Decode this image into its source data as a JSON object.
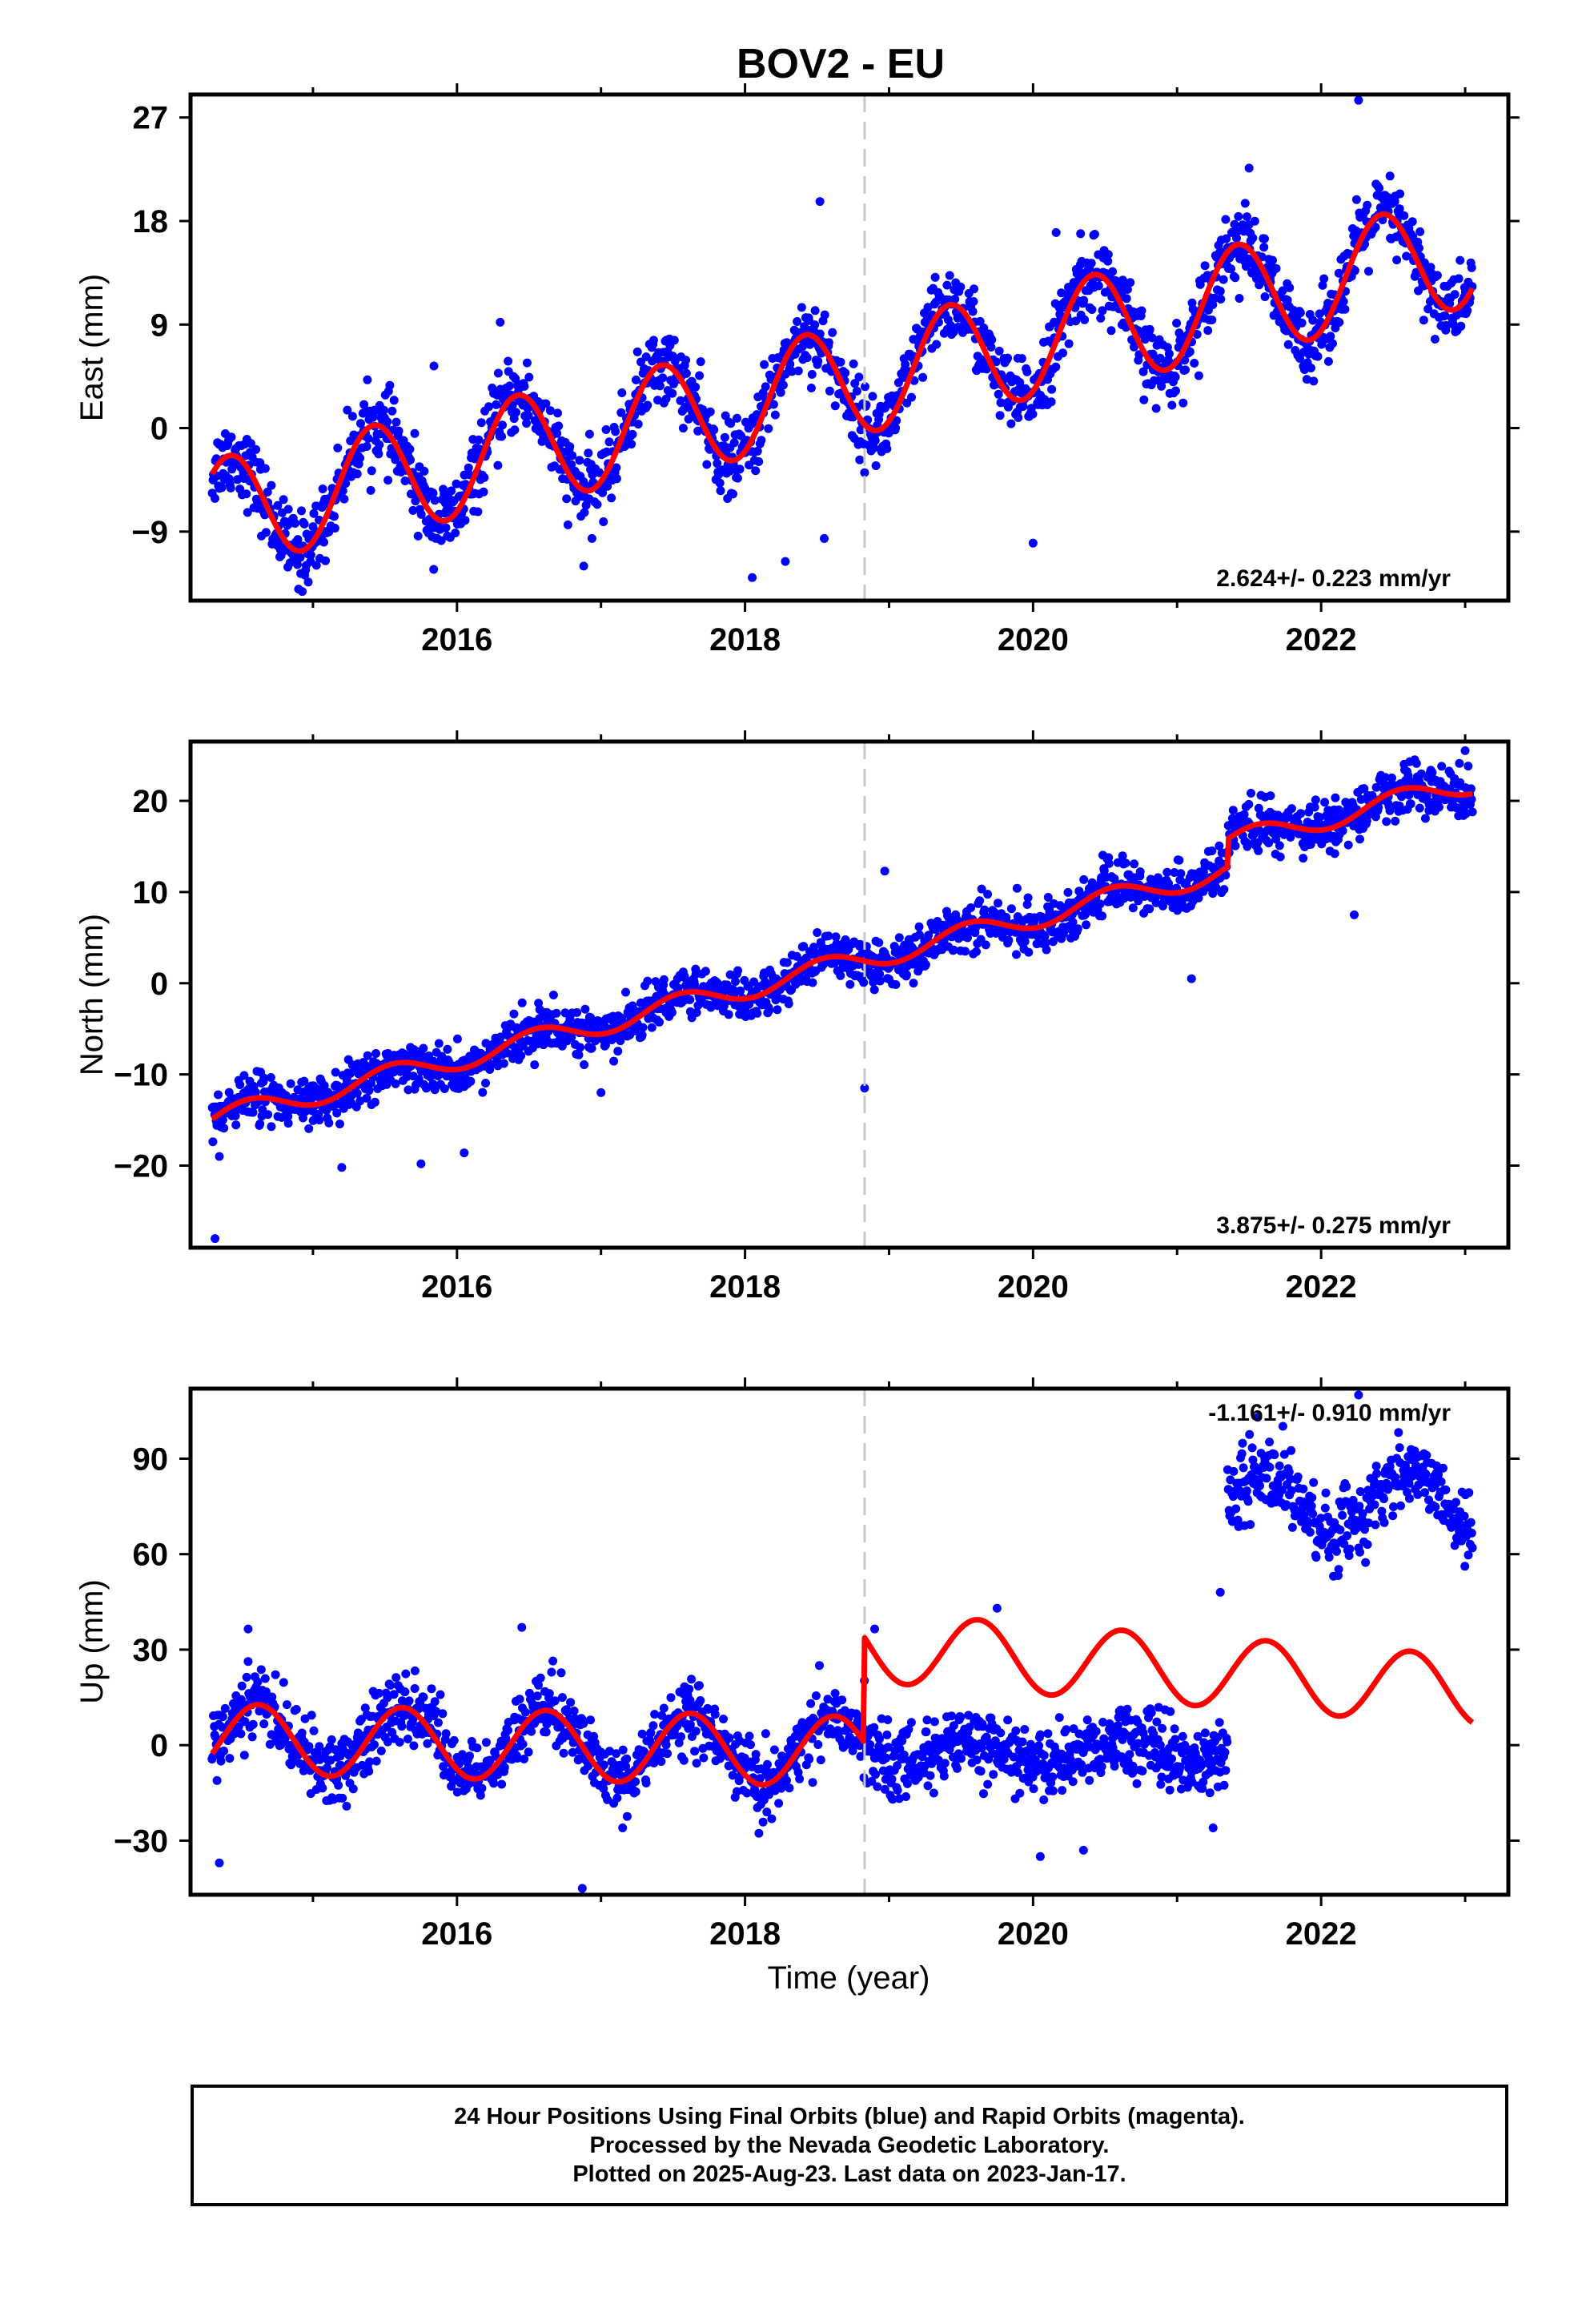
{
  "title": "BOV2 - EU",
  "colors": {
    "data": "#0000ff",
    "model": "#ff0000",
    "break_line": "#c8c8c8",
    "frame": "#000000"
  },
  "xlabel": "Time (year)",
  "footer": {
    "line1": "24 Hour Positions Using Final Orbits (blue) and Rapid Orbits (magenta).",
    "line2": "Processed by the Nevada Geodetic Laboratory.",
    "line3": "Plotted on 2025-Aug-23. Last data on 2023-Jan-17."
  },
  "chart_data": [
    {
      "type": "scatter",
      "component": "east",
      "ylabel": "East (mm)",
      "xlim": [
        2014.15,
        2023.3
      ],
      "ylim": [
        -15,
        29
      ],
      "xticks": [
        2016,
        2018,
        2020,
        2022
      ],
      "yticks": [
        -9,
        0,
        9,
        18,
        27
      ],
      "rate_text": "2.624+/- 0.223 mm/yr",
      "rate_position": "bottom-right",
      "break_epoch": 2018.83,
      "data_range": [
        2014.3,
        2023.05
      ],
      "trend": {
        "offset": -7.5,
        "rate": 2.62
      },
      "seasonal": {
        "amplitude": 4.8,
        "peak_phase": 0.42
      },
      "offsets": [],
      "scatter_sigma": 1.6,
      "points": [
        {
          "x": 2014.35,
          "y": -6.8
        },
        {
          "x": 2014.8,
          "y": -11.8
        },
        {
          "x": 2015.4,
          "y": -4.1
        },
        {
          "x": 2015.85,
          "y": -9.0
        },
        {
          "x": 2016.45,
          "y": -1.5
        },
        {
          "x": 2016.9,
          "y": -6.3
        },
        {
          "x": 2017.4,
          "y": 1.3
        },
        {
          "x": 2017.9,
          "y": -3.5
        },
        {
          "x": 2018.42,
          "y": 3.9
        },
        {
          "x": 2018.9,
          "y": -1.0
        },
        {
          "x": 2019.4,
          "y": 5.6
        },
        {
          "x": 2019.85,
          "y": 0.9
        },
        {
          "x": 2020.4,
          "y": 8.5
        },
        {
          "x": 2020.85,
          "y": 3.5
        },
        {
          "x": 2021.45,
          "y": 11.0
        },
        {
          "x": 2021.85,
          "y": 6.3
        },
        {
          "x": 2022.4,
          "y": 13.5
        },
        {
          "x": 2022.85,
          "y": 8.9
        }
      ],
      "outliers": [
        {
          "x": 2022.26,
          "y": 28.5
        },
        {
          "x": 2021.5,
          "y": 22.6
        },
        {
          "x": 2018.52,
          "y": 19.7
        },
        {
          "x": 2020.16,
          "y": 17.0
        },
        {
          "x": 2020.33,
          "y": 16.9
        },
        {
          "x": 2016.3,
          "y": 9.2
        },
        {
          "x": 2015.84,
          "y": 5.4
        },
        {
          "x": 2020.0,
          "y": -10.0
        },
        {
          "x": 2018.05,
          "y": -13.0
        },
        {
          "x": 2018.28,
          "y": -11.6
        },
        {
          "x": 2016.88,
          "y": -12.0
        },
        {
          "x": 2018.55,
          "y": -9.6
        },
        {
          "x": 2014.9,
          "y": -14.0
        }
      ]
    },
    {
      "type": "scatter",
      "component": "north",
      "ylabel": "North (mm)",
      "xlim": [
        2014.15,
        2023.3
      ],
      "ylim": [
        -29,
        26.5
      ],
      "xticks": [
        2016,
        2018,
        2020,
        2022
      ],
      "yticks": [
        -20,
        -10,
        0,
        10,
        20
      ],
      "rate_text": "3.875+/- 0.275 mm/yr",
      "rate_position": "bottom-right",
      "break_epoch": 2018.83,
      "data_range": [
        2014.3,
        2023.05
      ],
      "trend": {
        "offset": -14.9,
        "rate": 3.875
      },
      "seasonal": {
        "amplitude": 1.2,
        "peak_phase": 0.55
      },
      "offsets": [
        {
          "epoch": 2021.35,
          "size": 3.0
        }
      ],
      "scatter_sigma": 1.3,
      "points": [
        {
          "x": 2014.35,
          "y": -16.2
        },
        {
          "x": 2015.0,
          "y": -14.0
        },
        {
          "x": 2016.0,
          "y": -10.5
        },
        {
          "x": 2017.0,
          "y": -6.5
        },
        {
          "x": 2018.0,
          "y": -2.5
        },
        {
          "x": 2018.8,
          "y": 0.9
        },
        {
          "x": 2019.5,
          "y": 4.5
        },
        {
          "x": 2020.0,
          "y": 6.5
        },
        {
          "x": 2021.0,
          "y": 10.5
        },
        {
          "x": 2021.4,
          "y": 13.5
        },
        {
          "x": 2022.0,
          "y": 15.0
        },
        {
          "x": 2022.9,
          "y": 18.5
        }
      ],
      "outliers": [
        {
          "x": 2014.32,
          "y": -28.0
        },
        {
          "x": 2018.83,
          "y": -11.5
        },
        {
          "x": 2018.97,
          "y": 12.3
        },
        {
          "x": 2022.23,
          "y": 7.5
        },
        {
          "x": 2023.0,
          "y": 25.5
        },
        {
          "x": 2022.65,
          "y": 24.5
        },
        {
          "x": 2015.75,
          "y": -19.8
        },
        {
          "x": 2016.05,
          "y": -18.6
        },
        {
          "x": 2017.0,
          "y": -12.0
        },
        {
          "x": 2021.1,
          "y": 0.5
        },
        {
          "x": 2014.35,
          "y": -19.0
        },
        {
          "x": 2015.2,
          "y": -20.2
        }
      ]
    },
    {
      "type": "scatter",
      "component": "up",
      "ylabel": "Up (mm)",
      "xlim": [
        2014.15,
        2023.3
      ],
      "ylim": [
        -47,
        112
      ],
      "xticks": [
        2016,
        2018,
        2020,
        2022
      ],
      "yticks": [
        -30,
        0,
        30,
        60,
        90
      ],
      "rate_text": "-1.161+/- 0.910 mm/yr",
      "rate_position": "top-right",
      "break_epoch": 2018.83,
      "data_range": [
        2014.3,
        2023.05
      ],
      "trend": {
        "offset": 3.0,
        "rate": -1.161
      },
      "seasonal": {
        "amplitude": 11.0,
        "peak_phase": 0.62
      },
      "offsets": [
        {
          "epoch": 2018.83,
          "size": 30.0
        }
      ],
      "data_offsets": [
        {
          "start": 2018.83,
          "end": 2021.35,
          "shift": -28.0
        },
        {
          "start": 2021.35,
          "end": 2023.1,
          "shift": 48.0
        }
      ],
      "scatter_sigma": 5.5,
      "points": [
        {
          "x": 2014.6,
          "y": 14.0
        },
        {
          "x": 2015.1,
          "y": -7.0
        },
        {
          "x": 2015.6,
          "y": 13.0
        },
        {
          "x": 2016.1,
          "y": -8.0
        },
        {
          "x": 2016.6,
          "y": 12.0
        },
        {
          "x": 2017.1,
          "y": -10.0
        },
        {
          "x": 2017.6,
          "y": 11.0
        },
        {
          "x": 2018.1,
          "y": -11.0
        },
        {
          "x": 2018.6,
          "y": 10.0
        },
        {
          "x": 2018.83,
          "y": 28.0
        },
        {
          "x": 2019.6,
          "y": 42.0
        },
        {
          "x": 2020.6,
          "y": 41.0
        },
        {
          "x": 2021.6,
          "y": 40.0
        },
        {
          "x": 2022.6,
          "y": 39.0
        },
        {
          "x": 2023.0,
          "y": 16.0
        },
        {
          "x": 2021.6,
          "y": 80.0
        },
        {
          "x": 2022.0,
          "y": 65.0
        },
        {
          "x": 2022.6,
          "y": 80.0
        }
      ],
      "outliers": [
        {
          "x": 2014.35,
          "y": -37.0
        },
        {
          "x": 2016.87,
          "y": -45.0
        },
        {
          "x": 2022.26,
          "y": 110.0
        },
        {
          "x": 2021.56,
          "y": 103.0
        },
        {
          "x": 2020.05,
          "y": -35.0
        },
        {
          "x": 2014.55,
          "y": 36.5
        },
        {
          "x": 2016.45,
          "y": 37.0
        },
        {
          "x": 2019.75,
          "y": 43.0
        },
        {
          "x": 2018.9,
          "y": 36.5
        },
        {
          "x": 2021.3,
          "y": 48.0
        },
        {
          "x": 2021.25,
          "y": -26.0
        },
        {
          "x": 2017.15,
          "y": -26.0
        },
        {
          "x": 2020.35,
          "y": -33.0
        }
      ]
    }
  ]
}
